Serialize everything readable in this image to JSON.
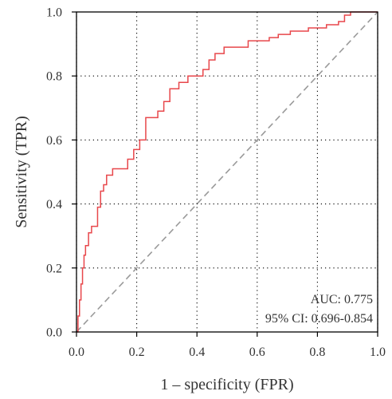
{
  "chart_data": {
    "type": "line",
    "title": "",
    "xlabel": "1 – specificity (FPR)",
    "ylabel": "Sensitivity (TPR)",
    "xlim": [
      0.0,
      1.0
    ],
    "ylim": [
      0.0,
      1.0
    ],
    "x_ticks": [
      "0.0",
      "0.2",
      "0.4",
      "0.6",
      "0.8",
      "1.0"
    ],
    "y_ticks": [
      "0.0",
      "0.2",
      "0.4",
      "0.6",
      "0.8",
      "1.0"
    ],
    "grid": true,
    "grid_style": "dotted",
    "annotations": [
      "AUC: 0.775",
      "95% CI: 0.696-0.854"
    ],
    "colors": {
      "roc": "#e8474b",
      "diagonal": "#9a9a9a",
      "grid": "#000000",
      "frame": "#000000"
    },
    "series": [
      {
        "style": "step",
        "x": [
          0.0,
          0.005,
          0.005,
          0.01,
          0.01,
          0.015,
          0.015,
          0.02,
          0.02,
          0.025,
          0.025,
          0.03,
          0.03,
          0.04,
          0.04,
          0.05,
          0.05,
          0.07,
          0.07,
          0.08,
          0.08,
          0.09,
          0.09,
          0.1,
          0.1,
          0.12,
          0.12,
          0.17,
          0.17,
          0.19,
          0.19,
          0.21,
          0.21,
          0.23,
          0.23,
          0.27,
          0.27,
          0.29,
          0.29,
          0.31,
          0.31,
          0.34,
          0.34,
          0.37,
          0.37,
          0.42,
          0.42,
          0.44,
          0.44,
          0.46,
          0.46,
          0.49,
          0.49,
          0.57,
          0.57,
          0.64,
          0.64,
          0.67,
          0.67,
          0.71,
          0.71,
          0.77,
          0.77,
          0.83,
          0.83,
          0.87,
          0.87,
          0.89,
          0.89,
          0.91,
          0.91,
          1.0
        ],
        "y": [
          0.0,
          0.0,
          0.05,
          0.05,
          0.1,
          0.1,
          0.15,
          0.15,
          0.2,
          0.2,
          0.24,
          0.24,
          0.27,
          0.27,
          0.31,
          0.31,
          0.33,
          0.33,
          0.39,
          0.39,
          0.44,
          0.44,
          0.46,
          0.46,
          0.49,
          0.49,
          0.51,
          0.51,
          0.54,
          0.54,
          0.57,
          0.57,
          0.6,
          0.6,
          0.67,
          0.67,
          0.69,
          0.69,
          0.72,
          0.72,
          0.76,
          0.76,
          0.78,
          0.78,
          0.8,
          0.8,
          0.82,
          0.82,
          0.85,
          0.85,
          0.87,
          0.87,
          0.89,
          0.89,
          0.91,
          0.91,
          0.92,
          0.92,
          0.93,
          0.93,
          0.94,
          0.94,
          0.95,
          0.95,
          0.96,
          0.96,
          0.97,
          0.97,
          0.99,
          0.99,
          1.0,
          1.0
        ]
      },
      {
        "style": "dashed",
        "x": [
          0.0,
          1.0
        ],
        "y": [
          0.0,
          1.0
        ]
      }
    ]
  }
}
